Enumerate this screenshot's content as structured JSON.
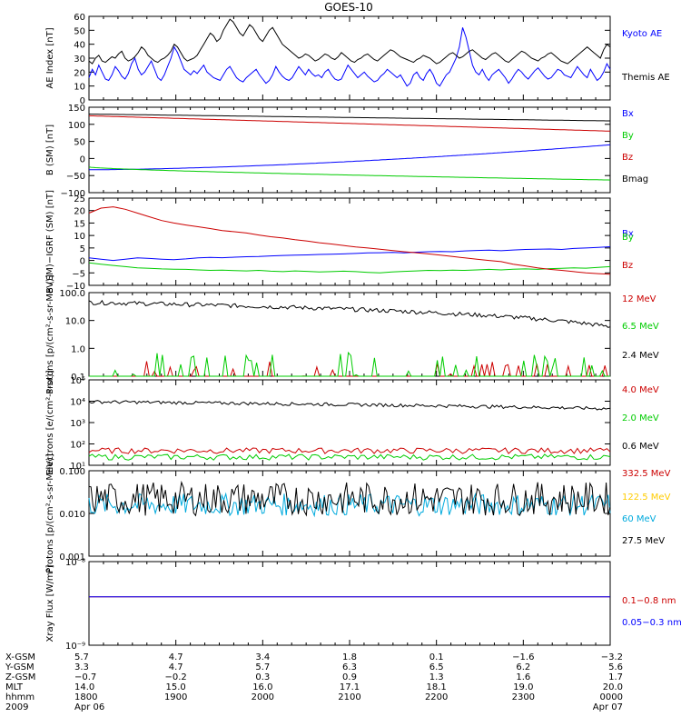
{
  "title": "GOES-10",
  "chart_data": [
    {
      "type": "line",
      "ylabel": "AE Index [nT]",
      "yticks": [
        "60",
        "50",
        "40",
        "30",
        "20",
        "10",
        "0"
      ],
      "ylim": [
        0,
        60
      ],
      "series": [
        {
          "name": "Kyoto AE",
          "color": "#0000ff",
          "y": [
            16,
            22,
            18,
            25,
            20,
            15,
            14,
            18,
            24,
            21,
            17,
            15,
            19,
            26,
            30,
            22,
            18,
            20,
            24,
            28,
            22,
            16,
            14,
            18,
            24,
            30,
            38,
            34,
            28,
            22,
            20,
            18,
            21,
            19,
            22,
            25,
            20,
            18,
            16,
            15,
            14,
            18,
            22,
            24,
            20,
            16,
            14,
            13,
            16,
            18,
            20,
            22,
            18,
            15,
            12,
            14,
            18,
            24,
            20,
            17,
            15,
            14,
            16,
            20,
            24,
            21,
            18,
            22,
            19,
            17,
            18,
            16,
            20,
            22,
            18,
            15,
            14,
            15,
            20,
            25,
            22,
            19,
            16,
            18,
            20,
            17,
            15,
            13,
            14,
            17,
            19,
            22,
            20,
            18,
            16,
            18,
            14,
            10,
            12,
            18,
            20,
            16,
            14,
            19,
            22,
            18,
            12,
            10,
            14,
            18,
            20,
            25,
            30,
            38,
            52,
            45,
            35,
            25,
            20,
            18,
            22,
            17,
            14,
            18,
            20,
            22,
            19,
            16,
            12,
            15,
            19,
            22,
            20,
            17,
            15,
            18,
            21,
            23,
            20,
            17,
            15,
            16,
            19,
            22,
            21,
            18,
            17,
            16,
            20,
            24,
            21,
            18,
            16,
            22,
            18,
            14,
            16,
            20,
            26,
            22
          ]
        },
        {
          "name": "Themis AE",
          "color": "#000000",
          "y": [
            28,
            26,
            30,
            32,
            28,
            27,
            29,
            31,
            30,
            33,
            35,
            30,
            28,
            29,
            31,
            34,
            38,
            36,
            32,
            30,
            28,
            27,
            29,
            30,
            32,
            35,
            40,
            38,
            34,
            30,
            28,
            29,
            30,
            32,
            36,
            40,
            44,
            48,
            46,
            42,
            44,
            50,
            54,
            58,
            56,
            52,
            48,
            46,
            50,
            54,
            52,
            48,
            44,
            42,
            46,
            50,
            52,
            48,
            44,
            40,
            38,
            36,
            34,
            32,
            30,
            31,
            33,
            32,
            30,
            28,
            29,
            31,
            33,
            32,
            30,
            29,
            31,
            34,
            32,
            30,
            28,
            27,
            29,
            30,
            32,
            33,
            31,
            29,
            28,
            30,
            32,
            34,
            36,
            35,
            33,
            31,
            30,
            29,
            28,
            27,
            29,
            30,
            32,
            31,
            30,
            28,
            26,
            27,
            29,
            31,
            33,
            34,
            32,
            30,
            31,
            33,
            35,
            36,
            34,
            32,
            30,
            29,
            31,
            33,
            34,
            32,
            30,
            28,
            27,
            29,
            31,
            33,
            35,
            34,
            32,
            30,
            29,
            28,
            30,
            31,
            33,
            34,
            32,
            30,
            28,
            27,
            26,
            28,
            30,
            32,
            34,
            36,
            38,
            36,
            34,
            32,
            30,
            36,
            40,
            38
          ]
        }
      ]
    },
    {
      "type": "line",
      "ylabel": "B (SM) [nT]",
      "yticks": [
        "150",
        "100",
        "50",
        "0",
        "−50",
        "−100"
      ],
      "ylim": [
        -100,
        150
      ],
      "series": [
        {
          "name": "Bx",
          "color": "#0000ff",
          "y_start": -33,
          "y_end": 40,
          "curve": 1.6
        },
        {
          "name": "By",
          "color": "#00cc00",
          "y_start": -25,
          "y_end": -63,
          "curve": 0.7
        },
        {
          "name": "Bz",
          "color": "#cc0000",
          "y_start": 125,
          "y_end": 80,
          "curve": 1.0
        },
        {
          "name": "Bmag",
          "color": "#000000",
          "y_start": 130,
          "y_end": 110,
          "curve": 1.0
        }
      ]
    },
    {
      "type": "line",
      "ylabel": "B (SM)−IGRF (SM) [nT]",
      "yticks": [
        "25",
        "20",
        "15",
        "10",
        "5",
        "0",
        "−5",
        "−10"
      ],
      "ylim": [
        -10,
        25
      ],
      "series": [
        {
          "name": "Bx",
          "color": "#0000ff",
          "y": [
            1,
            0.5,
            0,
            0.5,
            1,
            0.8,
            0.5,
            0.3,
            0.6,
            1,
            1.2,
            1.1,
            1.3,
            1.5,
            1.6,
            1.8,
            2,
            2.1,
            2.2,
            2.4,
            2.5,
            2.6,
            2.8,
            3,
            3.1,
            3.2,
            3,
            3.3,
            3.5,
            3.6,
            3.5,
            3.8,
            4,
            4.1,
            3.9,
            4.2,
            4.4,
            4.5,
            4.6,
            4.4,
            4.8,
            5,
            5.2,
            5.5
          ]
        },
        {
          "name": "By",
          "color": "#00cc00",
          "y": [
            -1,
            -1.5,
            -2,
            -2.5,
            -3,
            -3.2,
            -3.4,
            -3.5,
            -3.6,
            -3.8,
            -4,
            -3.9,
            -4.1,
            -4.2,
            -4,
            -4.3,
            -4.5,
            -4.2,
            -4.4,
            -4.6,
            -4.5,
            -4.3,
            -4.5,
            -4.8,
            -5,
            -4.6,
            -4.4,
            -4.2,
            -4,
            -4.1,
            -3.9,
            -4,
            -3.8,
            -3.6,
            -3.8,
            -3.5,
            -3.4,
            -3.6,
            -3.3,
            -3.2,
            -3,
            -3.1,
            -2.8,
            -2.5
          ]
        },
        {
          "name": "Bz",
          "color": "#cc0000",
          "y": [
            19,
            21,
            21.5,
            20.5,
            19,
            17.5,
            16,
            15,
            14.2,
            13.5,
            12.8,
            12,
            11.5,
            11,
            10.2,
            9.5,
            9,
            8.3,
            7.8,
            7.1,
            6.6,
            6,
            5.4,
            5,
            4.5,
            4,
            3.5,
            3.1,
            2.6,
            2.1,
            1.6,
            1,
            0.5,
            0,
            -0.5,
            -1.5,
            -2.2,
            -3,
            -3.6,
            -4,
            -4.5,
            -5,
            -5.3,
            -5.5
          ]
        }
      ]
    },
    {
      "type": "line",
      "ylabel": "Protons [p/(cm²-s-sr-MeV)]",
      "yticks": [
        "100.0",
        "10.0",
        "1.0",
        "0.1"
      ],
      "yscale": "log",
      "ylim": [
        0.1,
        100
      ],
      "series": [
        {
          "name": "12 MeV",
          "color": "#cc0000",
          "note": "sparse spikes near floor"
        },
        {
          "name": "6.5 MeV",
          "color": "#00cc00",
          "note": "sparse spikes near floor"
        },
        {
          "name": "2.4 MeV",
          "color": "#000000",
          "y_start": 45,
          "y_end": 6
        }
      ]
    },
    {
      "type": "line",
      "ylabel": "Electrons [e/(cm²-s-sr)]",
      "yticks": [
        "10⁵",
        "10⁴",
        "10³",
        "10²",
        "10¹"
      ],
      "yscale": "log",
      "ylim": [
        10,
        100000
      ],
      "series": [
        {
          "name": "4.0 MeV",
          "color": "#cc0000",
          "level": 50
        },
        {
          "name": "2.0 MeV",
          "color": "#00cc00",
          "level": 25
        },
        {
          "name": "0.6 MeV",
          "color": "#000000",
          "y_start": 9500,
          "y_end": 4500
        }
      ]
    },
    {
      "type": "line",
      "ylabel": "Protons [p/(cm²-s-sr-MeV)]",
      "yticks": [
        "0.100",
        "0.010",
        "0.001"
      ],
      "yscale": "log",
      "ylim": [
        0.001,
        0.1
      ],
      "series": [
        {
          "name": "332.5 MeV",
          "color": "#cc0000"
        },
        {
          "name": "122.5 MeV",
          "color": "#ffcc00"
        },
        {
          "name": "60 MeV",
          "color": "#00aadd",
          "level": 0.016
        },
        {
          "name": "27.5 MeV",
          "color": "#000000",
          "level": 0.022
        }
      ]
    },
    {
      "type": "line",
      "ylabel": "Xray Flux [W/m²]",
      "yticks": [
        "10⁻⁸",
        "10⁻⁹"
      ],
      "yscale": "log",
      "ylim": [
        1e-09,
        1e-08
      ],
      "series": [
        {
          "name": "0.1−0.8 nm",
          "color": "#cc0000",
          "level": 3.8e-09
        },
        {
          "name": "0.05−0.3 nm",
          "color": "#0000ff",
          "level": 3.8e-09
        }
      ]
    }
  ],
  "xaxis": {
    "rows": [
      {
        "label": "X-GSM",
        "values": [
          "5.7",
          "4.7",
          "3.4",
          "1.8",
          "0.1",
          "−1.6",
          "−3.2"
        ]
      },
      {
        "label": "Y-GSM",
        "values": [
          "3.3",
          "4.7",
          "5.7",
          "6.3",
          "6.5",
          "6.2",
          "5.6"
        ]
      },
      {
        "label": "Z-GSM",
        "values": [
          "−0.7",
          "−0.2",
          "0.3",
          "0.9",
          "1.3",
          "1.6",
          "1.7"
        ]
      },
      {
        "label": "MLT",
        "values": [
          "14.0",
          "15.0",
          "16.0",
          "17.1",
          "18.1",
          "19.0",
          "20.0"
        ]
      },
      {
        "label": "hhmm",
        "values": [
          "1800",
          "1900",
          "2000",
          "2100",
          "2200",
          "2300",
          "0000"
        ]
      },
      {
        "label": "2009",
        "values": [
          "Apr 06",
          "",
          "",
          "",
          "",
          "",
          "Apr 07"
        ]
      }
    ]
  }
}
